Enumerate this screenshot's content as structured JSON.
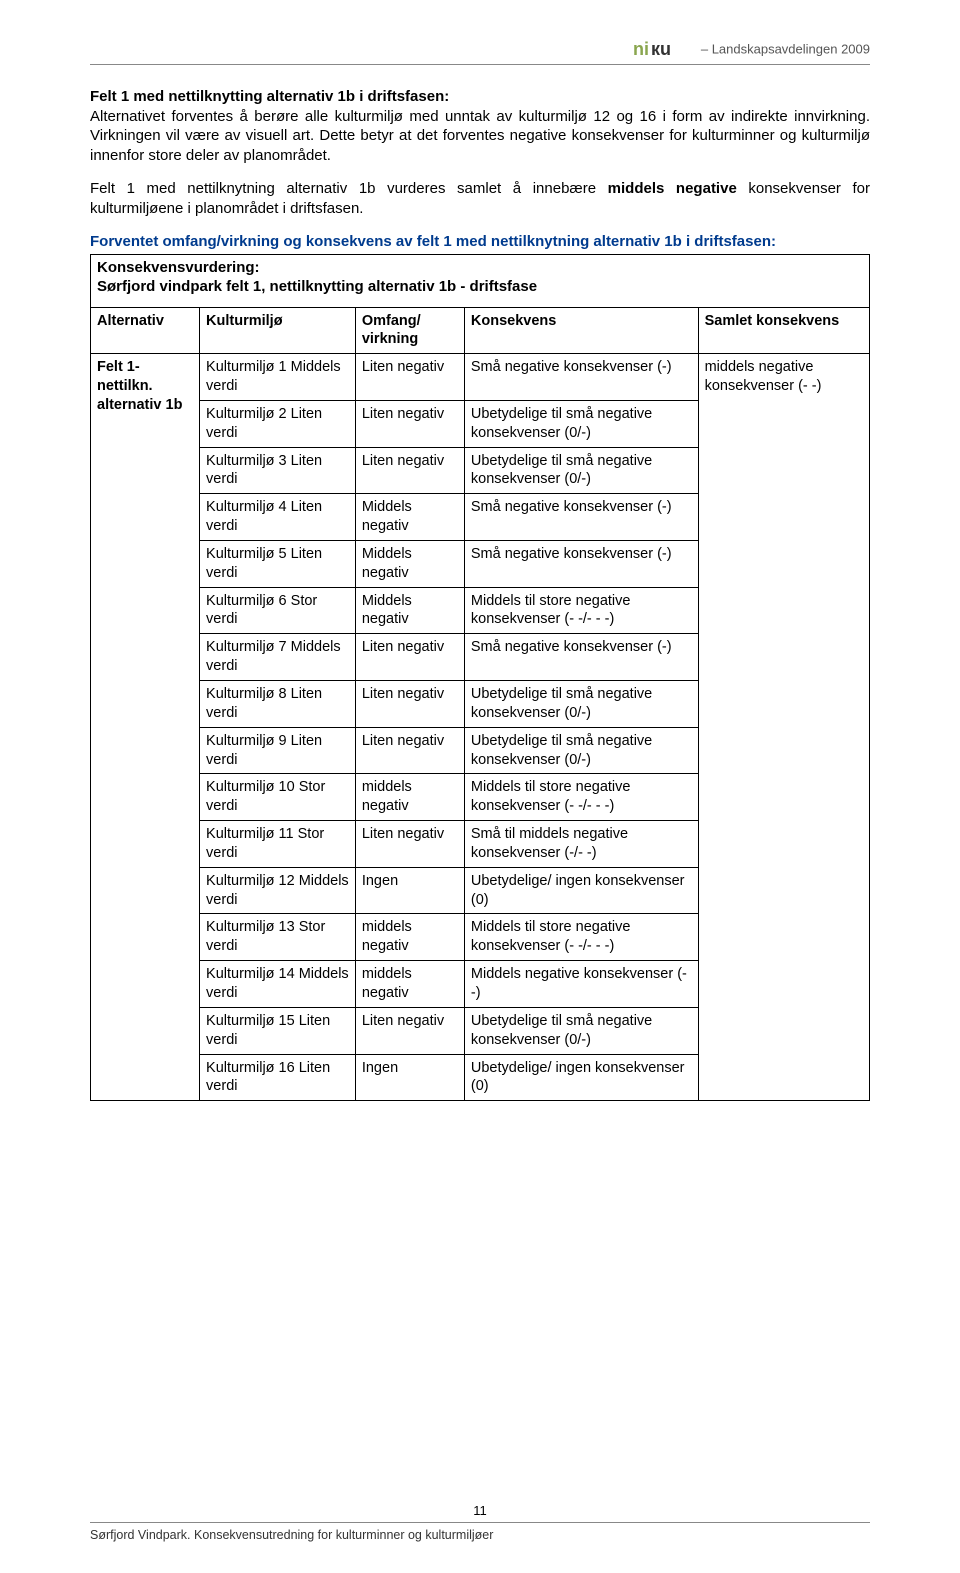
{
  "header": {
    "logo_text": "niкu",
    "right_text": "– Landskapsavdelingen 2009"
  },
  "heading1": "Felt 1 med nettilknytting alternativ 1b i driftsfasen:",
  "para1": "Alternativet forventes å berøre alle kulturmiljø med unntak av kulturmiljø 12 og 16 i form av indirekte innvirkning. Virkningen vil være av visuell art. Dette betyr at det forventes negative konsekvenser for kulturminner og kulturmiljø innenfor store deler av planområdet.",
  "para2_a": "Felt 1 med nettilknytning alternativ 1b vurderes samlet å innebære ",
  "para2_b": "middels negative",
  "para2_c": " konsekvenser for kulturmiljøene i planområdet i driftsfasen.",
  "blue_heading": "Forventet omfang/virkning og konsekvens av felt 1 med nettilknytning alternativ 1b i driftsfasen:",
  "sub_a": "Konsekvensvurdering:",
  "sub_b": "Sørfjord vindpark felt 1, nettilknytting alternativ 1b - driftsfase",
  "table": {
    "headers": {
      "alt": "Alternativ",
      "km": "Kulturmiljø",
      "ov": "Omfang/ virkning",
      "kons": "Konsekvens",
      "saml": "Samlet konsekvens"
    },
    "alt_label": "Felt 1- nettilkn. alternativ 1b",
    "samlet": "middels negative konsekvenser (- -)",
    "rows": [
      {
        "km": "Kulturmiljø 1 Middels verdi",
        "ov": "Liten negativ",
        "kons": "Små negative konsekvenser (-)"
      },
      {
        "km": "Kulturmiljø 2 Liten verdi",
        "ov": "Liten negativ",
        "kons": "Ubetydelige til små negative konsekvenser (0/-)"
      },
      {
        "km": "Kulturmiljø 3 Liten verdi",
        "ov": "Liten negativ",
        "kons": "Ubetydelige til små negative konsekvenser (0/-)"
      },
      {
        "km": "Kulturmiljø 4 Liten verdi",
        "ov": "Middels negativ",
        "kons": "Små negative konsekvenser (-)"
      },
      {
        "km": "Kulturmiljø 5 Liten verdi",
        "ov": "Middels negativ",
        "kons": "Små negative konsekvenser (-)"
      },
      {
        "km": "Kulturmiljø 6 Stor verdi",
        "ov": "Middels negativ",
        "kons": "Middels til store negative konsekvenser (- -/- - -)"
      },
      {
        "km": "Kulturmiljø 7 Middels verdi",
        "ov": "Liten negativ",
        "kons": "Små negative konsekvenser (-)"
      },
      {
        "km": "Kulturmiljø 8 Liten verdi",
        "ov": "Liten negativ",
        "kons": "Ubetydelige til små negative konsekvenser (0/-)"
      },
      {
        "km": "Kulturmiljø 9 Liten verdi",
        "ov": "Liten negativ",
        "kons": "Ubetydelige til små negative konsekvenser (0/-)"
      },
      {
        "km": "Kulturmiljø 10 Stor verdi",
        "ov": "middels negativ",
        "kons": "Middels til store negative konsekvenser (- -/- - -)"
      },
      {
        "km": "Kulturmiljø 11 Stor verdi",
        "ov": "Liten negativ",
        "kons": "Små til middels negative konsekvenser (-/- -)"
      },
      {
        "km": "Kulturmiljø 12 Middels verdi",
        "ov": "Ingen",
        "kons": "Ubetydelige/ ingen konsekvenser (0)"
      },
      {
        "km": "Kulturmiljø 13 Stor verdi",
        "ov": "middels negativ",
        "kons": "Middels til store negative konsekvenser (- -/- - -)"
      },
      {
        "km": "Kulturmiljø 14 Middels verdi",
        "ov": "middels negativ",
        "kons": "Middels negative konsekvenser (- -)"
      },
      {
        "km": "Kulturmiljø 15 Liten verdi",
        "ov": "Liten negativ",
        "kons": "Ubetydelige til små negative konsekvenser (0/-)"
      },
      {
        "km": "Kulturmiljø 16 Liten verdi",
        "ov": "Ingen",
        "kons": "Ubetydelige/ ingen konsekvenser (0)"
      }
    ]
  },
  "footer": {
    "page": "11",
    "text": "Sørfjord Vindpark. Konsekvensutredning for kulturminner og kulturmiljøer"
  },
  "colors": {
    "blue": "#003b8e",
    "logo_green": "#8aa64f",
    "text": "#000000",
    "rule": "#888888"
  }
}
